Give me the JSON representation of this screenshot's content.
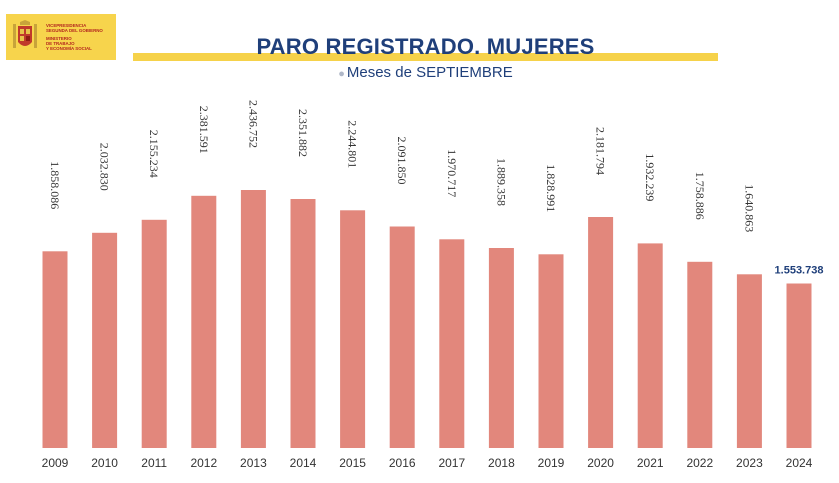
{
  "logo": {
    "lines": [
      "VICEPRESIDENCIA",
      "SEGUNDA DEL GOBIERNO",
      "MINISTERIO",
      "DE TRABAJO",
      "Y ECONOMÍA SOCIAL"
    ],
    "background": "#f7d44c",
    "text_color": "#b3261e",
    "icon": "coat-of-arms-icon"
  },
  "title": "PARO REGISTRADO. MUJERES",
  "subtitle": "Meses de SEPTIEMBRE",
  "colors": {
    "bar": "#e2877c",
    "title": "#1f3f7a",
    "band": "#f6d24a"
  },
  "chart_data": {
    "type": "bar",
    "title": "PARO REGISTRADO. MUJERES",
    "subtitle": "Meses de SEPTIEMBRE",
    "categories": [
      "2009",
      "2010",
      "2011",
      "2012",
      "2013",
      "2014",
      "2015",
      "2016",
      "2017",
      "2018",
      "2019",
      "2020",
      "2021",
      "2022",
      "2023",
      "2024"
    ],
    "values": [
      1858086,
      2032830,
      2155234,
      2381591,
      2436752,
      2351882,
      2244801,
      2091850,
      1970717,
      1889358,
      1828991,
      2181794,
      1932239,
      1758886,
      1640863,
      1553738
    ],
    "value_labels": [
      "1.858.086",
      "2.032.830",
      "2.155.234",
      "2.381.591",
      "2.436.752",
      "2.351.882",
      "2.244.801",
      "2.091.850",
      "1.970.717",
      "1.889.358",
      "1.828.991",
      "2.181.794",
      "1.932.239",
      "1.758.886",
      "1.640.863",
      "1.553.738"
    ],
    "xlabel": "",
    "ylabel": "",
    "ylim": [
      0,
      2436752
    ],
    "grid": false,
    "legend": "none"
  }
}
